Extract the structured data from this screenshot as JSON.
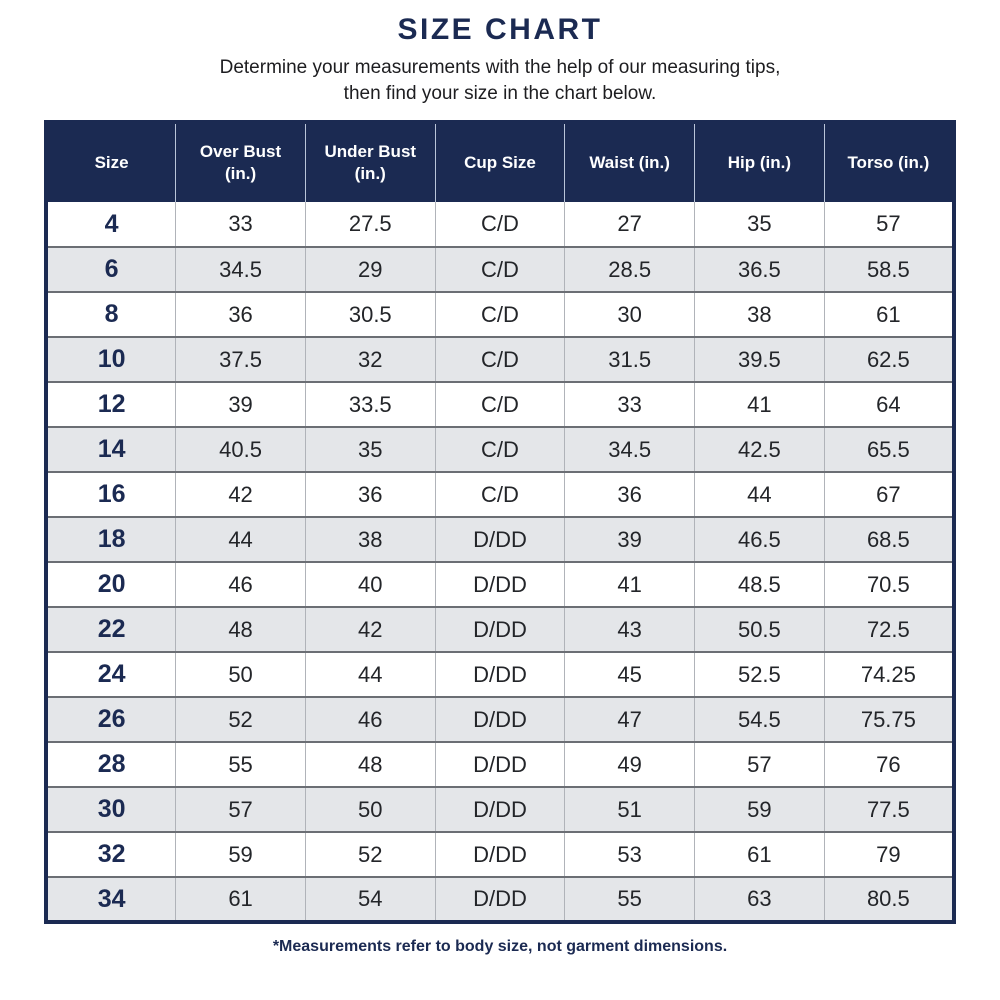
{
  "page": {
    "title": "SIZE CHART",
    "subtitle_line1": "Determine your measurements with the help of our measuring tips,",
    "subtitle_line2": "then find your size in the chart below.",
    "footnote": "*Measurements refer to body size, not garment dimensions."
  },
  "colors": {
    "navy": "#1b2a52",
    "header_text": "#ffffff",
    "row_alt_gray": "#e4e6e9",
    "row_white": "#ffffff",
    "cell_text": "#232529",
    "row_divider": "#6b6e74",
    "column_divider": "#b0b3b9"
  },
  "chart_data": {
    "type": "table",
    "title": "SIZE CHART",
    "columns": [
      "Size",
      "Over Bust (in.)",
      "Under Bust (in.)",
      "Cup Size",
      "Waist (in.)",
      "Hip (in.)",
      "Torso (in.)"
    ],
    "rows": [
      [
        "4",
        "33",
        "27.5",
        "C/D",
        "27",
        "35",
        "57"
      ],
      [
        "6",
        "34.5",
        "29",
        "C/D",
        "28.5",
        "36.5",
        "58.5"
      ],
      [
        "8",
        "36",
        "30.5",
        "C/D",
        "30",
        "38",
        "61"
      ],
      [
        "10",
        "37.5",
        "32",
        "C/D",
        "31.5",
        "39.5",
        "62.5"
      ],
      [
        "12",
        "39",
        "33.5",
        "C/D",
        "33",
        "41",
        "64"
      ],
      [
        "14",
        "40.5",
        "35",
        "C/D",
        "34.5",
        "42.5",
        "65.5"
      ],
      [
        "16",
        "42",
        "36",
        "C/D",
        "36",
        "44",
        "67"
      ],
      [
        "18",
        "44",
        "38",
        "D/DD",
        "39",
        "46.5",
        "68.5"
      ],
      [
        "20",
        "46",
        "40",
        "D/DD",
        "41",
        "48.5",
        "70.5"
      ],
      [
        "22",
        "48",
        "42",
        "D/DD",
        "43",
        "50.5",
        "72.5"
      ],
      [
        "24",
        "50",
        "44",
        "D/DD",
        "45",
        "52.5",
        "74.25"
      ],
      [
        "26",
        "52",
        "46",
        "D/DD",
        "47",
        "54.5",
        "75.75"
      ],
      [
        "28",
        "55",
        "48",
        "D/DD",
        "49",
        "57",
        "76"
      ],
      [
        "30",
        "57",
        "50",
        "D/DD",
        "51",
        "59",
        "77.5"
      ],
      [
        "32",
        "59",
        "52",
        "D/DD",
        "53",
        "61",
        "79"
      ],
      [
        "34",
        "61",
        "54",
        "D/DD",
        "55",
        "63",
        "80.5"
      ]
    ],
    "layout": {
      "alternating_rows": true,
      "first_row_background": "white",
      "header_background": "navy",
      "columns_count": 7,
      "rows_count": 16
    }
  }
}
